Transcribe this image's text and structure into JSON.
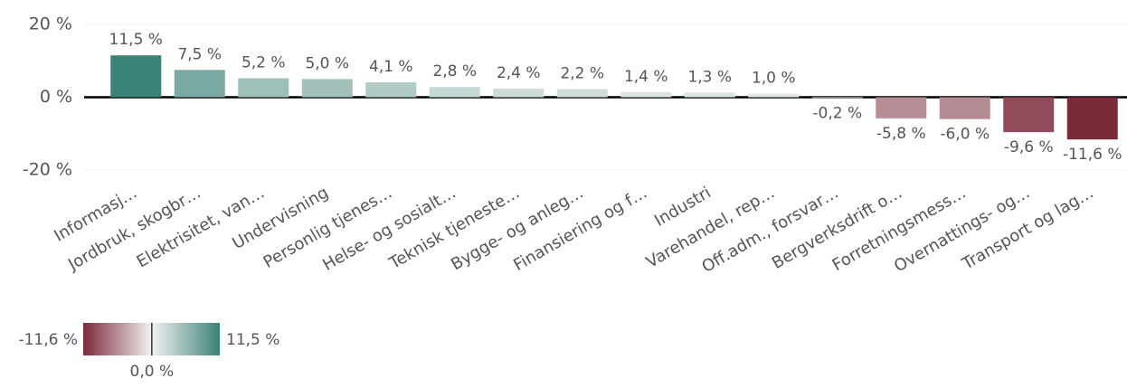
{
  "chart_data": {
    "type": "bar",
    "categories": [
      "Informasj…",
      "Jordbruk, skogbr…",
      "Elektrisitet, van…",
      "Undervisning",
      "Personlig tjenes…",
      "Helse- og sosialt…",
      "Teknisk tjeneste…",
      "Bygge- og anleg…",
      "Finansiering og f…",
      "Industri",
      "Varehandel, rep…",
      "Off.adm., forsvar…",
      "Bergverksdrift o…",
      "Forretningsmess…",
      "Overnattings- og…",
      "Transport og lag…"
    ],
    "values": [
      11.5,
      7.5,
      5.2,
      5.0,
      4.1,
      2.8,
      2.4,
      2.2,
      1.4,
      1.3,
      1.0,
      -0.2,
      -5.8,
      -6.0,
      -9.6,
      -11.6
    ],
    "value_labels": [
      "11,5 %",
      "7,5 %",
      "5,2 %",
      "5,0 %",
      "4,1 %",
      "2,8 %",
      "2,4 %",
      "2,2 %",
      "1,4 %",
      "1,3 %",
      "1,0 %",
      "-0,2 %",
      "-5,8 %",
      "-6,0 %",
      "-9,6 %",
      "-11,6 %"
    ],
    "ylim": [
      -20,
      20
    ],
    "yticks": [
      {
        "value": 20,
        "label": "20 %"
      },
      {
        "value": 0,
        "label": "0 %"
      },
      {
        "value": -20,
        "label": "-20 %"
      }
    ],
    "grid": true,
    "colorscale": {
      "values": [
        -11.6,
        0,
        11.5
      ],
      "value_labels": [
        "-11,6 %",
        "0,0 %",
        "11,5 %"
      ],
      "colors": [
        "#7b2a3a",
        "#f2f2f2",
        "#3a8276"
      ]
    }
  }
}
